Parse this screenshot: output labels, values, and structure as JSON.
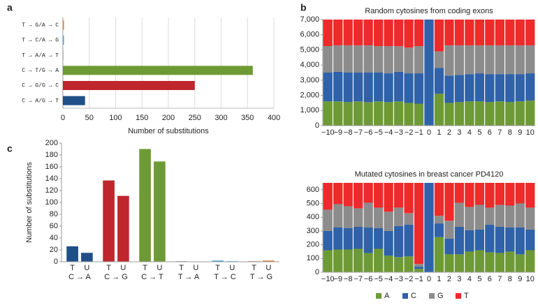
{
  "chart_data": [
    {
      "type": "hbar",
      "panel": "a",
      "categories": [
        "T → G/A → C",
        "T → C/A → G",
        "T → A/A → T",
        "C → T/G → A",
        "C → G/G → C",
        "C → A/G → T"
      ],
      "values": [
        2,
        2,
        1,
        360,
        250,
        42
      ],
      "colors": [
        "#e07b2a",
        "#3fa9d6",
        "#9a9a9a",
        "#6e9a35",
        "#c0262d",
        "#1f4f86"
      ],
      "xlim": [
        0,
        400
      ],
      "xticks": [
        0,
        50,
        100,
        150,
        200,
        250,
        300,
        350,
        400
      ],
      "xlabel": "Number of substitutions",
      "grid": true
    },
    {
      "type": "stacked",
      "panel": "b",
      "title": "Random cytosines from coding exons",
      "categories": [
        "−10",
        "−9",
        "−8",
        "−7",
        "−6",
        "−5",
        "−4",
        "−3",
        "−2",
        "−1",
        "0",
        "1",
        "2",
        "3",
        "4",
        "5",
        "6",
        "7",
        "8",
        "9",
        "10"
      ],
      "series": [
        {
          "name": "A",
          "color": "#6e9a35",
          "values": [
            1600,
            1600,
            1550,
            1600,
            1550,
            1600,
            1550,
            1600,
            1500,
            1450,
            0,
            2100,
            1500,
            1550,
            1600,
            1600,
            1550,
            1600,
            1550,
            1600,
            1650
          ]
        },
        {
          "name": "C",
          "color": "#2f62a8",
          "values": [
            1900,
            1950,
            1950,
            1900,
            1950,
            1900,
            1900,
            1950,
            1950,
            2000,
            7000,
            1700,
            1800,
            1800,
            1800,
            1850,
            1850,
            1800,
            1850,
            1800,
            1800
          ]
        },
        {
          "name": "G",
          "color": "#8c8c8c",
          "values": [
            1750,
            1750,
            1800,
            1800,
            1800,
            1750,
            1800,
            1700,
            1700,
            1800,
            0,
            1100,
            2000,
            1950,
            1900,
            1850,
            1900,
            1900,
            1900,
            1900,
            1850
          ]
        },
        {
          "name": "T",
          "color": "#ee2a2a",
          "values": [
            1750,
            1700,
            1700,
            1700,
            1700,
            1750,
            1750,
            1750,
            1850,
            1750,
            0,
            2100,
            1700,
            1700,
            1700,
            1700,
            1700,
            1700,
            1700,
            1700,
            1700
          ]
        }
      ],
      "ylim": [
        0,
        7000
      ],
      "yticks": [
        0,
        {
          "value": 1000,
          "label": "1,000"
        },
        {
          "value": 2000,
          "label": "2,000"
        },
        {
          "value": 3000,
          "label": "3,000"
        },
        {
          "value": 4000,
          "label": "4,000"
        },
        {
          "value": 5000,
          "label": "5,000"
        },
        {
          "value": 6000,
          "label": "6,000"
        },
        {
          "value": 7000,
          "label": "7,000"
        }
      ]
    },
    {
      "type": "stacked",
      "title": "Mutated cytosines in breast cancer PD4120",
      "categories": [
        "−10",
        "−9",
        "−8",
        "−7",
        "−6",
        "−5",
        "−4",
        "−3",
        "−2",
        "−1",
        "0",
        "1",
        "2",
        "3",
        "4",
        "5",
        "6",
        "7",
        "8",
        "9",
        "10"
      ],
      "series": [
        {
          "name": "A",
          "color": "#6e9a35",
          "values": [
            160,
            165,
            165,
            170,
            140,
            170,
            120,
            110,
            115,
            25,
            0,
            255,
            130,
            130,
            150,
            160,
            145,
            140,
            150,
            130,
            160
          ]
        },
        {
          "name": "C",
          "color": "#2f62a8",
          "values": [
            140,
            160,
            155,
            160,
            185,
            150,
            180,
            225,
            230,
            15,
            650,
            100,
            115,
            200,
            155,
            150,
            200,
            190,
            175,
            195,
            150
          ]
        },
        {
          "name": "G",
          "color": "#8c8c8c",
          "values": [
            155,
            170,
            160,
            135,
            180,
            150,
            140,
            135,
            85,
            20,
            0,
            55,
            130,
            175,
            170,
            180,
            125,
            160,
            160,
            175,
            160
          ]
        },
        {
          "name": "T",
          "color": "#ee2a2a",
          "values": [
            195,
            155,
            170,
            185,
            145,
            180,
            210,
            180,
            220,
            590,
            0,
            240,
            275,
            145,
            175,
            160,
            180,
            160,
            165,
            150,
            180
          ]
        }
      ],
      "ylim": [
        0,
        650
      ],
      "yticks": [
        0,
        100,
        200,
        300,
        400,
        500,
        600
      ],
      "legend": true
    },
    {
      "type": "grouped",
      "panel": "c",
      "categories": [
        "C → A",
        "C → G",
        "C → T",
        "T → A",
        "T → C",
        "T → G"
      ],
      "colors": [
        "#1f4f86",
        "#c0262d",
        "#6e9a35",
        "#9a9a9a",
        "#3fa9d6",
        "#e07b2a"
      ],
      "series": [
        {
          "name": "T",
          "values": [
            26,
            137,
            190,
            1,
            2,
            1
          ]
        },
        {
          "name": "U",
          "values": [
            15,
            111,
            169,
            0,
            1,
            2
          ]
        }
      ],
      "ylim": [
        0,
        200
      ],
      "yticks": [
        0,
        20,
        40,
        60,
        80,
        100,
        120,
        140,
        160,
        180,
        200
      ],
      "ylabel": "Number of substitutions"
    }
  ]
}
